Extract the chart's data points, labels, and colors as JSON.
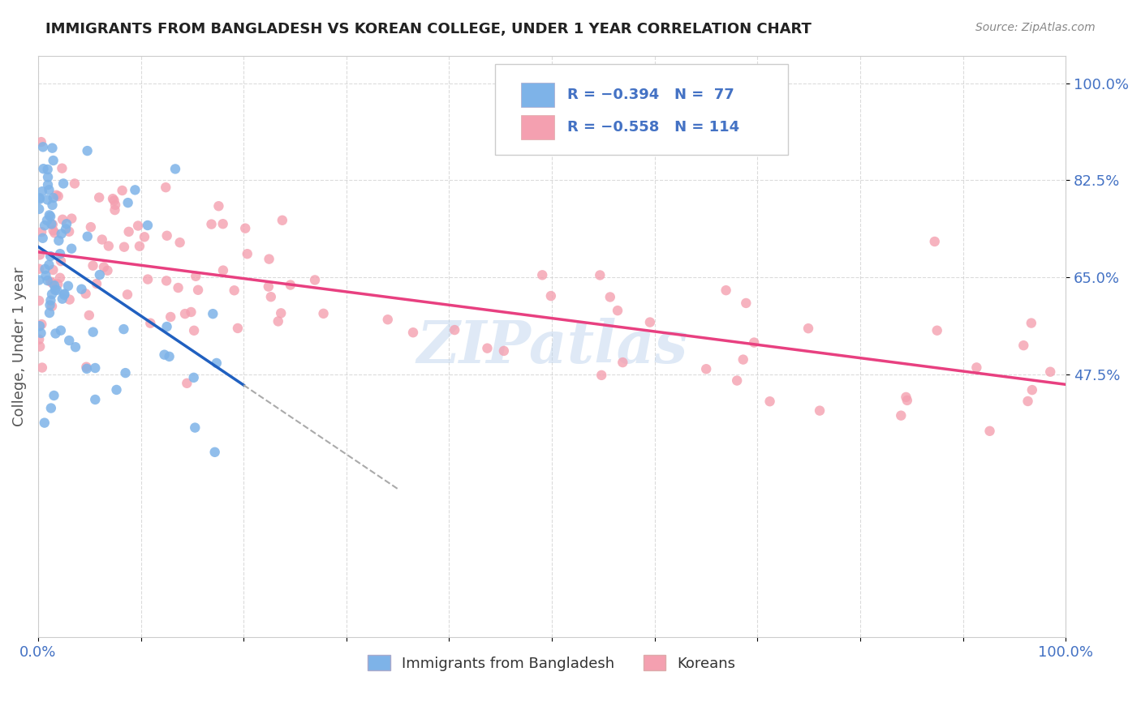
{
  "title": "IMMIGRANTS FROM BANGLADESH VS KOREAN COLLEGE, UNDER 1 YEAR CORRELATION CHART",
  "source": "Source: ZipAtlas.com",
  "ylabel": "College, Under 1 year",
  "yticks": [
    "100.0%",
    "82.5%",
    "65.0%",
    "47.5%"
  ],
  "ytick_vals": [
    1.0,
    0.825,
    0.65,
    0.475
  ],
  "color_blue": "#7EB3E8",
  "color_pink": "#F4A0B0",
  "color_blue_line": "#2060C0",
  "color_pink_line": "#E84080",
  "legend_label1": "Immigrants from Bangladesh",
  "legend_label2": "Koreans",
  "watermark": "ZIPatlas",
  "title_color": "#222222",
  "axis_label_color": "#4472C4",
  "background_color": "#FFFFFF",
  "xmin": 0.0,
  "xmax": 1.0,
  "ymin": 0.0,
  "ymax": 1.05
}
